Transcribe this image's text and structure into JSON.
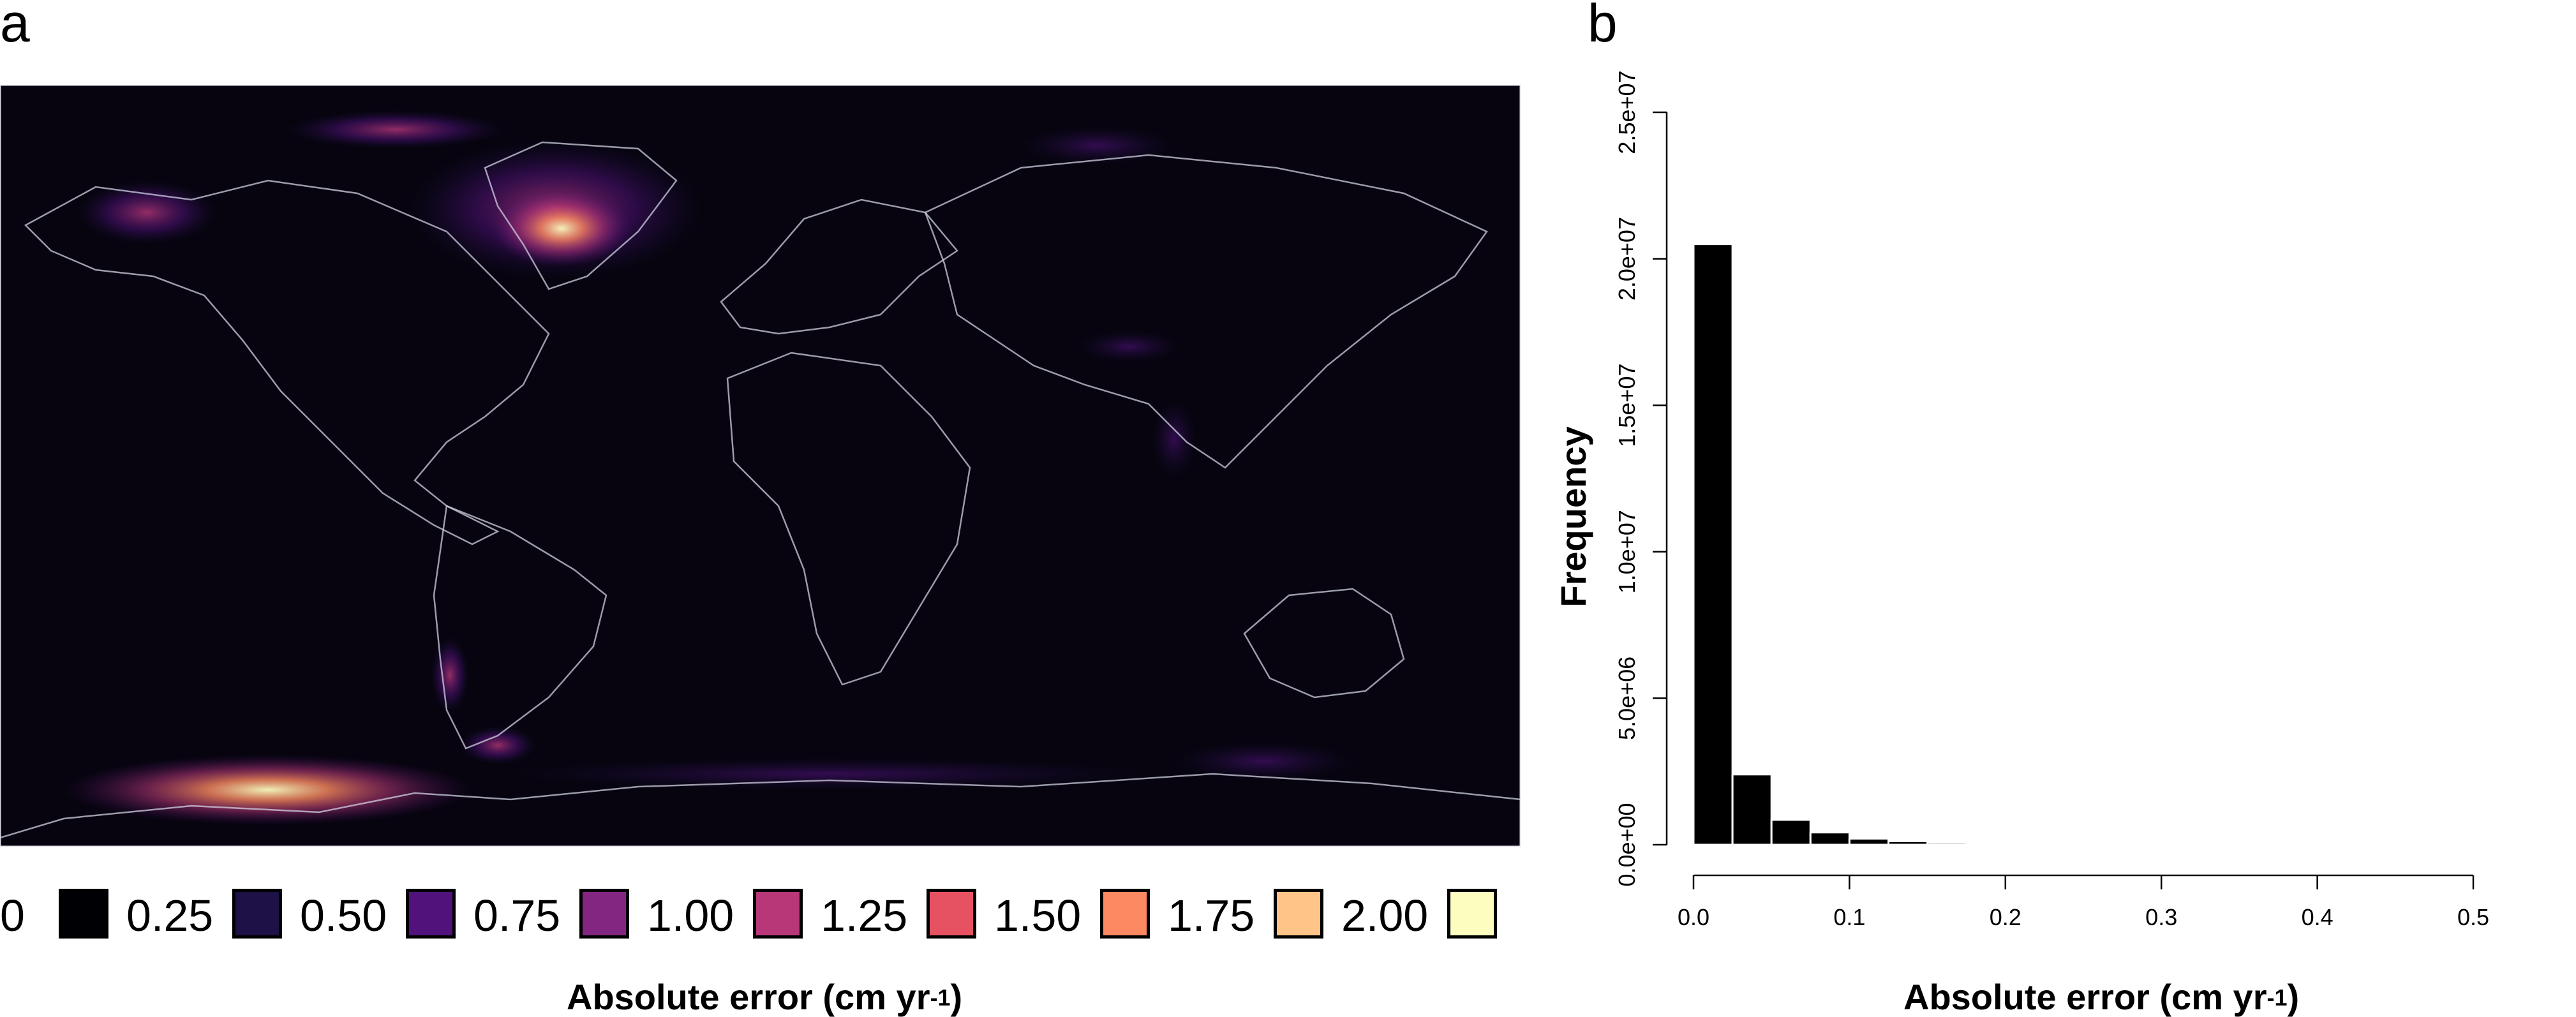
{
  "panels": {
    "a_letter": "a",
    "b_letter": "b"
  },
  "legend": {
    "labels": [
      "0",
      "0.25",
      "0.50",
      "0.75",
      "1.00",
      "1.25",
      "1.50",
      "1.75",
      "2.00"
    ],
    "colors": [
      "#000004",
      "#1d1147",
      "#51127c",
      "#832681",
      "#b73779",
      "#e75263",
      "#fc8961",
      "#fec488",
      "#fcfdbf"
    ]
  },
  "map": {
    "x_title": "Absolute error (cm yr",
    "x_title_sup": "-1",
    "x_title_close": ")",
    "background_color": "#07040f",
    "border_color": "#d9d9e0"
  },
  "chart_data": {
    "type": "bar",
    "title": "",
    "xlabel": "Absolute error (cm yr-1)",
    "ylabel": "Frequency",
    "xlim": [
      0,
      0.5
    ],
    "ylim": [
      0,
      25000000
    ],
    "x_ticks": [
      0.0,
      0.1,
      0.2,
      0.3,
      0.4,
      0.5
    ],
    "x_tick_labels": [
      "0.0",
      "0.1",
      "0.2",
      "0.3",
      "0.4",
      "0.5"
    ],
    "y_ticks": [
      0,
      5000000,
      10000000,
      15000000,
      20000000,
      25000000
    ],
    "y_tick_labels": [
      "0.0e+00",
      "5.0e+06",
      "1.0e+07",
      "1.5e+07",
      "2.0e+07",
      "2.5e+07"
    ],
    "bin_width": 0.025,
    "bin_starts": [
      0.0,
      0.025,
      0.05,
      0.075,
      0.1,
      0.125,
      0.15,
      0.175,
      0.2,
      0.225
    ],
    "values": [
      20500000,
      2400000,
      850000,
      420000,
      210000,
      120000,
      70000,
      40000,
      20000,
      10000
    ],
    "bar_color": "#000000",
    "grid": false
  }
}
